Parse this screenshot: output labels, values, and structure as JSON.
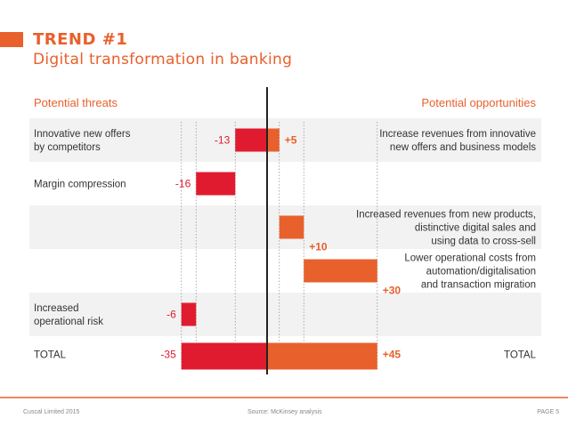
{
  "header": {
    "title": "TREND #1",
    "subtitle": "Digital transformation in banking"
  },
  "columns": {
    "threats": "Potential threats",
    "opportunities": "Potential opportunities"
  },
  "chart_data": {
    "type": "bar",
    "subtype": "diverging-waterfall",
    "rows": [
      {
        "threat_label": "Innovative new offers\nby competitors",
        "threat_value": -13,
        "threat_text": "-13",
        "opp_label": "Increase revenues from innovative\nnew offers and business models",
        "opp_value": 5,
        "opp_text": "+5"
      },
      {
        "threat_label": "Margin compression",
        "threat_value": -16,
        "threat_text": "-16",
        "opp_label": "",
        "opp_value": null,
        "opp_text": ""
      },
      {
        "threat_label": "",
        "threat_value": null,
        "threat_text": "",
        "opp_label": "Increased revenues from new products,\ndistinctive digital sales and\nusing data to cross-sell",
        "opp_value": 10,
        "opp_text": "+10"
      },
      {
        "threat_label": "",
        "threat_value": null,
        "threat_text": "",
        "opp_label": "Lower operational costs from\nautomation/digitalisation\nand transaction migration",
        "opp_value": 30,
        "opp_text": "+30"
      },
      {
        "threat_label": "Increased\noperational risk",
        "threat_value": -6,
        "threat_text": "-6",
        "opp_label": "",
        "opp_value": null,
        "opp_text": ""
      }
    ],
    "total": {
      "label_left": "TOTAL",
      "label_right": "TOTAL",
      "threat_value": -35,
      "threat_text": "-35",
      "opp_value": 45,
      "opp_text": "+45"
    },
    "colors": {
      "threat": "#e01b2f",
      "opportunity": "#e8602c",
      "band": "#f2f2f2",
      "value_text_threat": "#e01b2f",
      "value_text_opp": "#e8602c"
    }
  },
  "footer": {
    "left": "Cuscal Limited 2015",
    "source": "Source: McKinsey analysis",
    "page": "PAGE 5"
  }
}
